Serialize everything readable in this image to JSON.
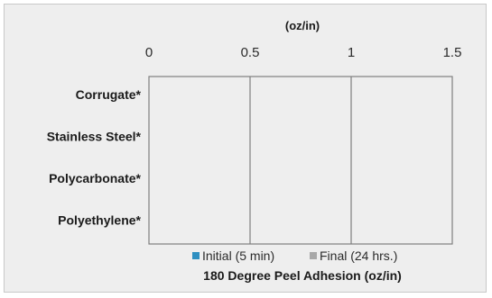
{
  "chart_data": {
    "type": "bar",
    "orientation": "horizontal",
    "axis_unit_top": "(oz/in)",
    "xlabel": "180 Degree Peel Adhesion (oz/in)",
    "xlim": [
      0,
      1.5
    ],
    "ticks": [
      {
        "value": 0,
        "label": "0"
      },
      {
        "value": 0.5,
        "label": "0.5"
      },
      {
        "value": 1,
        "label": "1"
      },
      {
        "value": 1.5,
        "label": "1.5"
      }
    ],
    "grid": true,
    "legend_placement": "bottom",
    "categories": [
      "Corrugate*",
      "Stainless Steel*",
      "Polycarbonate*",
      "Polyethylene*"
    ],
    "series": [
      {
        "name": "Initial (5 min)",
        "color": "#2e8fc1",
        "values": [
          0,
          0,
          0,
          0
        ]
      },
      {
        "name": "Final (24 hrs.)",
        "color": "#a8a8a8",
        "values": [
          0,
          0,
          0,
          0
        ]
      }
    ]
  }
}
